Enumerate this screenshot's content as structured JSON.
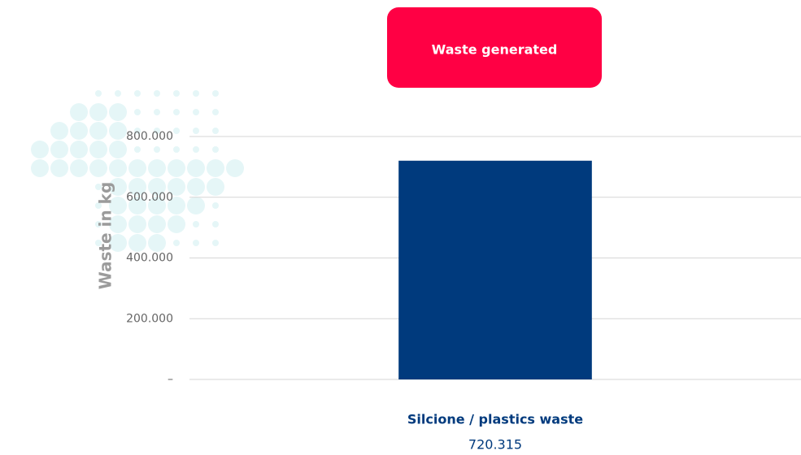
{
  "chart_data": {
    "type": "bar",
    "title": "Waste generated",
    "y_label": "Waste in kg",
    "categories": [
      "Silcione / plastics waste"
    ],
    "values": [
      720315
    ],
    "value_labels": [
      "720.315"
    ],
    "color": "#003a7d",
    "ylim": [
      0,
      800000
    ],
    "yticks": [
      {
        "value": 0,
        "label": "–"
      },
      {
        "value": 200000,
        "label": "200.000"
      },
      {
        "value": 400000,
        "label": "400.000"
      },
      {
        "value": 600000,
        "label": "600.000"
      },
      {
        "value": 800000,
        "label": "800.000"
      }
    ],
    "grid": true
  }
}
